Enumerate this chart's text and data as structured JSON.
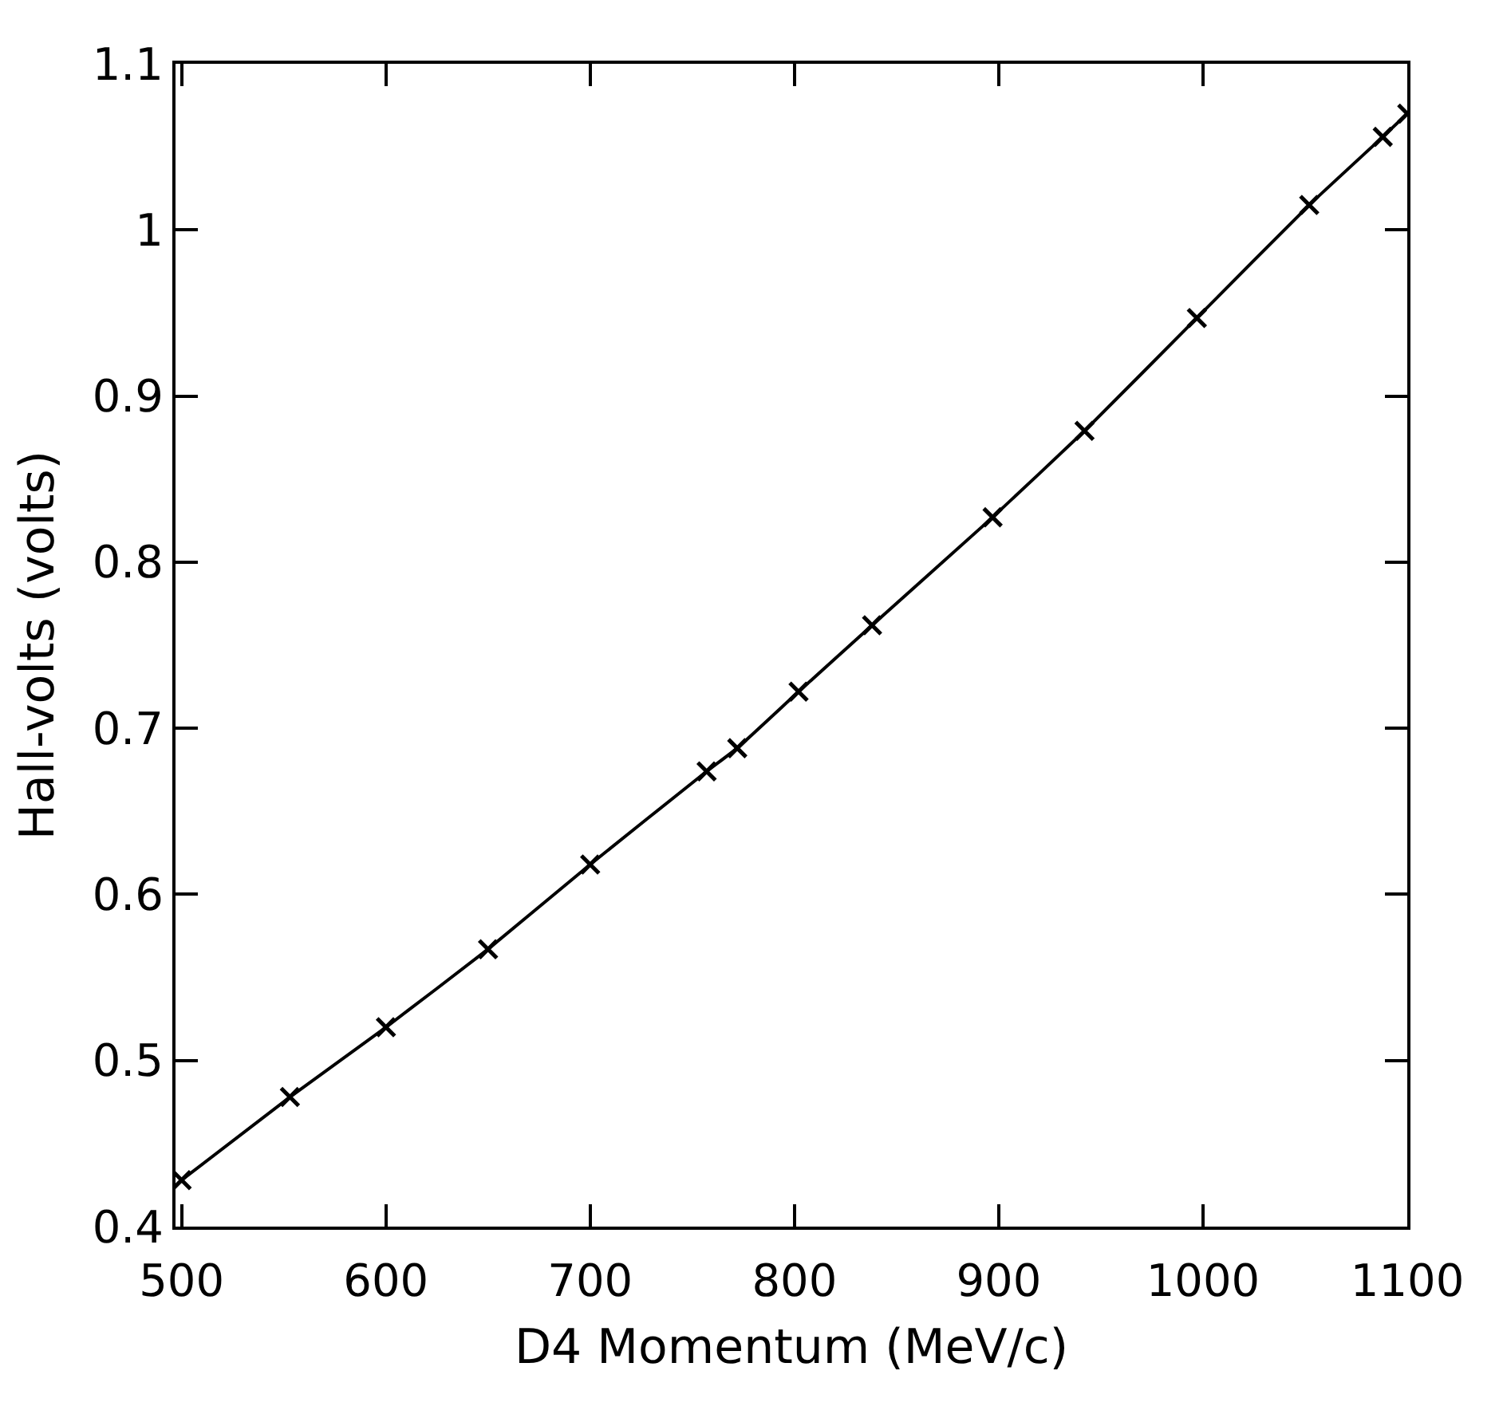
{
  "chart_data": {
    "type": "line",
    "xlabel": "D4 Momentum (MeV/c)",
    "ylabel": "Hall-volts (volts)",
    "x": [
      500,
      553,
      600,
      650,
      700,
      757,
      772,
      802,
      838,
      897,
      942,
      997,
      1052,
      1088,
      1100
    ],
    "series": [
      {
        "color": "#000000",
        "values": [
          0.428,
          0.478,
          0.52,
          0.567,
          0.618,
          0.674,
          0.688,
          0.722,
          0.762,
          0.827,
          0.879,
          0.947,
          1.015,
          1.056,
          1.07
        ]
      }
    ],
    "xlim": [
      497,
      1100
    ],
    "ylim": [
      0.4,
      1.1
    ],
    "xticks": [
      500,
      600,
      700,
      800,
      900,
      1000,
      1100
    ],
    "yticks": [
      0.4,
      0.5,
      0.6,
      0.7,
      0.8,
      0.9,
      1,
      1.1
    ],
    "marker": "cross",
    "line_style": "solid"
  }
}
